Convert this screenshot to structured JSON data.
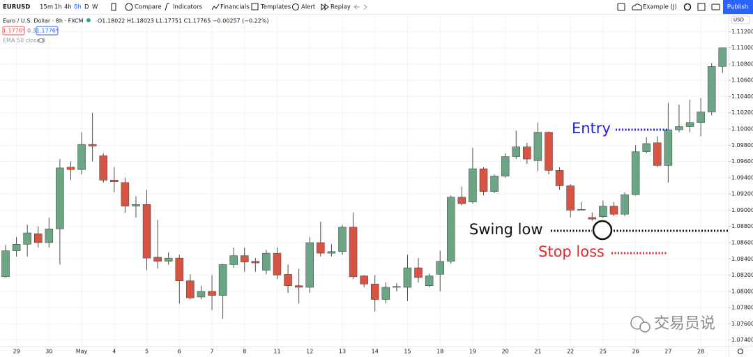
{
  "toolbar": {
    "symbol": "EURUSD",
    "intervals": [
      "15m",
      "1h",
      "4h",
      "8h",
      "D",
      "W"
    ],
    "buttons": [
      "Compare",
      "Indicators",
      "Financials",
      "Templates",
      "Alert",
      "Replay"
    ],
    "layout": "Example (J)",
    "publish": "Publish"
  },
  "legend": {
    "title": "Euro / U.S. Dollar · 8h · FXCM",
    "ohlc": "O1.18022 H1.18023 L1.17751 C1.17765 −0.00257 (−0.22%)",
    "sell": "1.1776⁵",
    "spread": "0.3",
    "buy": "1.1776⁸",
    "indicator": "EMA 50 close 0"
  },
  "watermark": "交易员说",
  "chart_data": {
    "type": "candlestick",
    "currency": "USD",
    "categories": [
      null,
      "29",
      null,
      null,
      "30",
      null,
      null,
      "May",
      null,
      null,
      "4",
      null,
      null,
      "5",
      null,
      null,
      "6",
      null,
      null,
      "7",
      null,
      null,
      "8",
      null,
      null,
      "11",
      null,
      null,
      "12",
      null,
      null,
      "13",
      null,
      null,
      "14",
      null,
      null,
      "15",
      null,
      null,
      "18",
      null,
      null,
      "19",
      null,
      null,
      "20",
      null,
      null,
      "21",
      null,
      null,
      "22",
      null,
      null,
      "25",
      null,
      null,
      "26",
      null,
      null,
      "27",
      null,
      null,
      "28",
      null,
      null
    ],
    "open": [
      1.0818,
      1.085,
      1.0858,
      1.0871,
      1.086,
      1.0877,
      1.0953,
      1.095,
      1.0981,
      1.0967,
      1.0937,
      1.0934,
      1.0905,
      1.0907,
      1.0842,
      1.0837,
      1.0841,
      1.0813,
      1.0793,
      1.08,
      1.0795,
      1.0833,
      1.0844,
      1.0837,
      1.0826,
      1.0847,
      1.0821,
      1.0807,
      1.0805,
      1.086,
      1.0847,
      1.0849,
      1.0879,
      1.0819,
      1.0809,
      1.079,
      1.0805,
      1.0805,
      1.0829,
      1.0807,
      1.0821,
      1.0837,
      1.0916,
      1.091,
      1.0951,
      1.0923,
      1.0942,
      1.0966,
      1.0978,
      1.0961,
      1.0996,
      1.0949,
      1.093,
      1.09,
      1.0891,
      1.0892,
      1.0905,
      1.0895,
      1.0919,
      1.0972,
      1.0983,
      1.0955,
      1.0999,
      1.1003,
      1.1008,
      1.1021,
      1.1077
    ],
    "high": [
      1.0857,
      1.0867,
      1.0882,
      1.088,
      1.0891,
      1.0963,
      1.096,
      1.0996,
      1.102,
      1.097,
      1.0953,
      1.094,
      1.0917,
      1.0925,
      1.0888,
      1.0848,
      1.0845,
      1.0821,
      1.0807,
      1.082,
      1.0834,
      1.0854,
      1.0854,
      1.0841,
      1.0851,
      1.0854,
      1.0833,
      1.0828,
      1.0867,
      1.0886,
      1.0858,
      1.0882,
      1.0897,
      1.082,
      1.082,
      1.0811,
      1.081,
      1.0845,
      1.0841,
      1.0822,
      1.085,
      1.0918,
      1.0929,
      1.0977,
      1.0953,
      1.0944,
      1.097,
      1.0998,
      1.0983,
      1.1008,
      1.0997,
      1.0953,
      1.0932,
      1.091,
      1.0897,
      1.0912,
      1.091,
      1.0922,
      1.098,
      1.099,
      1.0991,
      1.1032,
      1.103,
      1.1036,
      1.1038,
      1.1081,
      1.11
    ],
    "low": [
      1.0817,
      1.0843,
      1.0843,
      1.0854,
      1.0854,
      1.0833,
      1.0937,
      1.0944,
      1.096,
      1.0934,
      1.0922,
      1.0897,
      1.0891,
      1.0826,
      1.0828,
      1.0833,
      1.0785,
      1.079,
      1.079,
      1.0777,
      1.0766,
      1.0829,
      1.0824,
      1.0824,
      1.0821,
      1.0815,
      1.0798,
      1.0785,
      1.0798,
      1.0843,
      1.0843,
      1.0845,
      1.0815,
      1.0805,
      1.0775,
      1.0785,
      1.08,
      1.0788,
      1.0811,
      1.0805,
      1.08,
      1.0834,
      1.0906,
      1.0908,
      1.0918,
      1.0921,
      1.094,
      1.0963,
      1.0957,
      1.0948,
      1.0944,
      1.0925,
      1.0891,
      1.09,
      1.0887,
      1.089,
      1.0893,
      1.0893,
      1.0918,
      1.097,
      1.0953,
      1.0934,
      1.0996,
      1.0996,
      1.0991,
      1.1017,
      1.1069
    ],
    "close": [
      1.085,
      1.0858,
      1.0872,
      1.086,
      1.0877,
      1.0952,
      1.095,
      1.0981,
      1.0979,
      1.0937,
      1.0935,
      1.0905,
      1.0907,
      1.0841,
      1.0837,
      1.0841,
      1.0813,
      1.0792,
      1.08,
      1.0795,
      1.0833,
      1.0844,
      1.0836,
      1.0835,
      1.0847,
      1.082,
      1.0807,
      1.0805,
      1.086,
      1.0847,
      1.0849,
      1.0879,
      1.0818,
      1.0809,
      1.079,
      1.0805,
      1.0806,
      1.0829,
      1.0817,
      1.0819,
      1.0837,
      1.0916,
      1.0908,
      1.0951,
      1.0923,
      1.0942,
      1.0966,
      1.0978,
      1.0963,
      1.0996,
      1.0949,
      1.093,
      1.09,
      1.0901,
      1.0889,
      1.0905,
      1.0895,
      1.0919,
      1.0972,
      1.0982,
      1.0955,
      1.0999,
      1.1003,
      1.1008,
      1.1021,
      1.1077,
      1.11
    ],
    "up_color": "#6ba583",
    "down_color": "#d75442",
    "ylim": [
      1.0732,
      1.114
    ],
    "yticks": [
      {
        "value": 1.112,
        "label": "1.11200"
      },
      {
        "value": 1.11,
        "label": "1.11000"
      },
      {
        "value": 1.108,
        "label": "1.10800"
      },
      {
        "value": 1.106,
        "label": "1.10600"
      },
      {
        "value": 1.104,
        "label": "1.10400"
      },
      {
        "value": 1.102,
        "label": "1.10200"
      },
      {
        "value": 1.1,
        "label": "1.10000"
      },
      {
        "value": 1.098,
        "label": "1.09800"
      },
      {
        "value": 1.096,
        "label": "1.09600"
      },
      {
        "value": 1.094,
        "label": "1.09400"
      },
      {
        "value": 1.092,
        "label": "1.09200"
      },
      {
        "value": 1.09,
        "label": "1.09000"
      },
      {
        "value": 1.088,
        "label": "1.08800"
      },
      {
        "value": 1.086,
        "label": "1.08600"
      },
      {
        "value": 1.084,
        "label": "1.08400"
      },
      {
        "value": 1.082,
        "label": "1.08200"
      },
      {
        "value": 1.08,
        "label": "1.08000"
      },
      {
        "value": 1.078,
        "label": "1.07800"
      },
      {
        "value": 1.076,
        "label": "1.07600"
      },
      {
        "value": 1.074,
        "label": "1.07400"
      }
    ],
    "grid": true,
    "annotations": [
      "Entry",
      "Swing low",
      "Stop loss"
    ]
  }
}
